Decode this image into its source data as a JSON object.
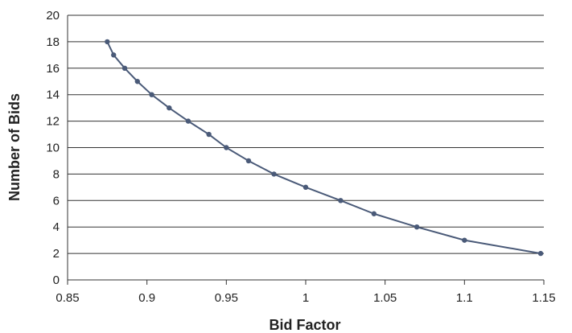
{
  "chart_data": {
    "type": "line",
    "xlabel": "Bid Factor",
    "ylabel": "Number of Bids",
    "xlim": [
      0.85,
      1.15
    ],
    "ylim": [
      0,
      20
    ],
    "x_ticks": [
      "0.85",
      "0.9",
      "0.95",
      "1",
      "1.05",
      "1.1",
      "1.15"
    ],
    "y_ticks": [
      "0",
      "2",
      "4",
      "6",
      "8",
      "10",
      "12",
      "14",
      "16",
      "18",
      "20"
    ],
    "grid": "horizontal",
    "legend": "none",
    "series": [
      {
        "color": "#4a5a78",
        "points": [
          [
            0.875,
            18
          ],
          [
            0.879,
            17
          ],
          [
            0.886,
            16
          ],
          [
            0.894,
            15
          ],
          [
            0.903,
            14
          ],
          [
            0.914,
            13
          ],
          [
            0.926,
            12
          ],
          [
            0.939,
            11
          ],
          [
            0.95,
            10
          ],
          [
            0.964,
            9
          ],
          [
            0.98,
            8
          ],
          [
            1.0,
            7
          ],
          [
            1.022,
            6
          ],
          [
            1.043,
            5
          ],
          [
            1.07,
            4
          ],
          [
            1.1,
            3
          ],
          [
            1.148,
            2
          ]
        ]
      }
    ]
  }
}
